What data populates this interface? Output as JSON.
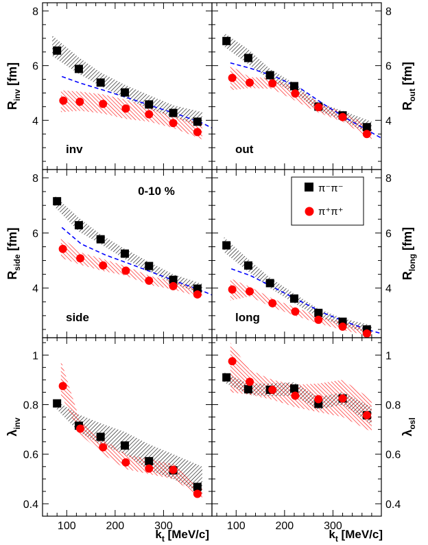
{
  "figure": {
    "x_axis_label": "k",
    "x_axis_sub": "t",
    "x_axis_unit": " [MeV/c]",
    "centrality": "0-10 %",
    "legend": [
      {
        "label": "π⁻π⁻",
        "marker": "square",
        "color": "#000000"
      },
      {
        "label": "π⁺π⁺",
        "marker": "circle",
        "color": "#ff0000"
      }
    ]
  },
  "colors": {
    "pim": "#000000",
    "pip": "#ff0000",
    "model": "#0000ff"
  },
  "chart_data": [
    {
      "type": "scatter",
      "panel": "inv",
      "label_main": "R",
      "label_sub": "inv",
      "label_unit": " [fm]",
      "panel_label": "inv",
      "ylim": [
        2.2,
        8.3
      ],
      "yticks": [
        4,
        6,
        8
      ],
      "xlim": [
        50,
        400
      ],
      "xticks": [
        100,
        200,
        300
      ],
      "series": [
        {
          "name": "π⁻π⁻",
          "x": [
            80,
            125,
            170,
            220,
            270,
            320,
            370
          ],
          "y": [
            6.55,
            5.88,
            5.38,
            5.02,
            4.58,
            4.27,
            3.95
          ],
          "band_x": [
            70,
            125,
            170,
            220,
            270,
            320,
            380
          ],
          "band_low": [
            6.35,
            5.7,
            5.25,
            4.82,
            4.42,
            4.12,
            3.75
          ],
          "band_high": [
            7.1,
            6.3,
            5.75,
            5.3,
            4.92,
            4.55,
            4.3
          ]
        },
        {
          "name": "π⁺π⁺",
          "x": [
            93,
            127,
            175,
            222,
            270,
            320,
            370
          ],
          "y": [
            4.72,
            4.68,
            4.6,
            4.43,
            4.22,
            3.9,
            3.57
          ],
          "band_x": [
            88,
            127,
            175,
            222,
            270,
            320,
            380
          ],
          "band_low": [
            4.3,
            4.35,
            4.25,
            4.05,
            3.95,
            3.72,
            3.3
          ],
          "band_high": [
            5.1,
            5.05,
            4.95,
            4.75,
            4.5,
            4.15,
            3.9
          ]
        },
        {
          "name": "",
          "line": true,
          "x": [
            90,
            130,
            180,
            230,
            280,
            330,
            380,
            400
          ],
          "y": [
            5.6,
            5.35,
            5.08,
            4.8,
            4.5,
            4.22,
            3.9,
            3.72
          ]
        }
      ]
    },
    {
      "type": "scatter",
      "panel": "out",
      "label_main": "R",
      "label_sub": "out",
      "label_unit": " [fm]",
      "panel_label": "out",
      "ylim": [
        2.2,
        8.3
      ],
      "yticks": [
        4,
        6,
        8
      ],
      "xlim": [
        50,
        400
      ],
      "xticks": [
        100,
        200,
        300
      ],
      "series": [
        {
          "name": "π⁻π⁻",
          "x": [
            80,
            125,
            170,
            220,
            270,
            320,
            370
          ],
          "y": [
            6.9,
            6.28,
            5.65,
            5.25,
            4.5,
            4.18,
            3.75
          ],
          "band_x": [
            75,
            125,
            170,
            220,
            270,
            320,
            380
          ],
          "band_low": [
            6.7,
            6.05,
            5.48,
            5.0,
            4.35,
            4.0,
            3.45
          ],
          "band_high": [
            7.2,
            6.6,
            5.88,
            5.35,
            4.65,
            4.35,
            3.95
          ]
        },
        {
          "name": "π⁺π⁺",
          "x": [
            92,
            128,
            175,
            222,
            270,
            320,
            370
          ],
          "y": [
            5.55,
            5.38,
            5.35,
            4.98,
            4.48,
            4.12,
            3.5
          ],
          "band_x": [
            88,
            128,
            175,
            222,
            270,
            320,
            380
          ],
          "band_low": [
            5.1,
            5.18,
            5.15,
            4.72,
            4.28,
            3.95,
            3.3
          ],
          "band_high": [
            6.0,
            5.58,
            5.55,
            5.18,
            4.65,
            4.3,
            3.75
          ]
        },
        {
          "name": "",
          "line": true,
          "x": [
            88,
            130,
            180,
            230,
            280,
            330,
            380,
            400
          ],
          "y": [
            6.1,
            5.9,
            5.6,
            5.2,
            4.6,
            4.05,
            3.55,
            3.35
          ]
        }
      ]
    },
    {
      "type": "scatter",
      "panel": "side",
      "label_main": "R",
      "label_sub": "side",
      "label_unit": " [fm]",
      "panel_label": "side",
      "ylim": [
        2.2,
        8.3
      ],
      "yticks": [
        4,
        6,
        8
      ],
      "xlim": [
        50,
        400
      ],
      "xticks": [
        100,
        200,
        300
      ],
      "series": [
        {
          "name": "π⁻π⁻",
          "x": [
            80,
            125,
            170,
            220,
            270,
            320,
            370
          ],
          "y": [
            7.15,
            6.28,
            5.77,
            5.25,
            4.8,
            4.3,
            3.98
          ],
          "band_x": [
            75,
            125,
            170,
            220,
            270,
            320,
            380
          ],
          "band_low": [
            6.95,
            6.05,
            5.6,
            5.05,
            4.62,
            4.15,
            3.8
          ],
          "band_high": [
            7.35,
            6.55,
            5.95,
            5.42,
            4.95,
            4.5,
            4.15
          ]
        },
        {
          "name": "π⁺π⁺",
          "x": [
            92,
            128,
            175,
            222,
            270,
            320,
            370
          ],
          "y": [
            5.42,
            5.08,
            4.82,
            4.63,
            4.27,
            4.07,
            3.77
          ],
          "band_x": [
            88,
            128,
            175,
            222,
            270,
            320,
            380
          ],
          "band_low": [
            5.1,
            4.85,
            4.62,
            4.45,
            4.12,
            3.95,
            3.65
          ],
          "band_high": [
            5.85,
            5.3,
            5.05,
            4.8,
            4.45,
            4.25,
            3.95
          ]
        },
        {
          "name": "",
          "line": true,
          "x": [
            90,
            130,
            180,
            230,
            280,
            330,
            380,
            400
          ],
          "y": [
            6.2,
            5.6,
            5.2,
            4.88,
            4.55,
            4.22,
            3.9,
            3.75
          ]
        }
      ]
    },
    {
      "type": "scatter",
      "panel": "long",
      "label_main": "R",
      "label_sub": "long",
      "label_unit": " [fm]",
      "panel_label": "long",
      "ylim": [
        2.2,
        8.3
      ],
      "yticks": [
        4,
        6,
        8
      ],
      "xlim": [
        50,
        400
      ],
      "xticks": [
        100,
        200,
        300
      ],
      "series": [
        {
          "name": "π⁻π⁻",
          "x": [
            80,
            125,
            170,
            220,
            270,
            320,
            370
          ],
          "y": [
            5.55,
            4.82,
            4.18,
            3.62,
            3.1,
            2.78,
            2.5
          ],
          "band_x": [
            75,
            125,
            170,
            220,
            270,
            320,
            380
          ],
          "band_low": [
            5.3,
            4.6,
            4.0,
            3.45,
            2.95,
            2.62,
            2.35
          ],
          "band_high": [
            5.85,
            5.05,
            4.38,
            3.8,
            3.25,
            2.9,
            2.65
          ]
        },
        {
          "name": "π⁺π⁺",
          "x": [
            92,
            128,
            175,
            222,
            270,
            320,
            370
          ],
          "y": [
            3.95,
            3.88,
            3.45,
            3.15,
            2.85,
            2.6,
            2.35
          ],
          "band_x": [
            88,
            128,
            175,
            222,
            270,
            320,
            380
          ],
          "band_low": [
            3.55,
            3.7,
            3.3,
            3.0,
            2.72,
            2.48,
            2.25
          ],
          "band_high": [
            4.35,
            4.05,
            3.62,
            3.3,
            3.0,
            2.75,
            2.5
          ]
        },
        {
          "name": "",
          "line": true,
          "x": [
            90,
            130,
            180,
            230,
            280,
            330,
            380,
            400
          ],
          "y": [
            4.7,
            4.45,
            4.0,
            3.55,
            3.1,
            2.75,
            2.45,
            2.35
          ]
        }
      ]
    },
    {
      "type": "scatter",
      "panel": "lambda_inv",
      "label_main": "λ",
      "label_sub": "inv",
      "label_unit": "",
      "panel_label": "",
      "ylim": [
        0.35,
        1.07
      ],
      "yticks": [
        0.4,
        0.6,
        0.8,
        1.0
      ],
      "xlim": [
        50,
        400
      ],
      "xticks": [
        100,
        200,
        300
      ],
      "series": [
        {
          "name": "π⁻π⁻",
          "x": [
            80,
            125,
            170,
            220,
            270,
            320,
            370
          ],
          "y": [
            0.805,
            0.715,
            0.67,
            0.635,
            0.572,
            0.535,
            0.468
          ],
          "band_x": [
            75,
            125,
            170,
            220,
            270,
            320,
            380
          ],
          "band_low": [
            0.79,
            0.69,
            0.64,
            0.6,
            0.535,
            0.5,
            0.44
          ],
          "band_high": [
            0.82,
            0.76,
            0.725,
            0.69,
            0.64,
            0.6,
            0.55
          ]
        },
        {
          "name": "π⁺π⁺",
          "x": [
            92,
            128,
            175,
            222,
            270,
            320,
            370
          ],
          "y": [
            0.875,
            0.703,
            0.628,
            0.567,
            0.542,
            0.537,
            0.44
          ],
          "band_x": [
            88,
            128,
            175,
            222,
            270,
            320,
            380
          ],
          "band_low": [
            0.84,
            0.68,
            0.6,
            0.54,
            0.52,
            0.5,
            0.42
          ],
          "band_high": [
            0.98,
            0.73,
            0.66,
            0.6,
            0.58,
            0.56,
            0.46
          ]
        }
      ]
    },
    {
      "type": "scatter",
      "panel": "lambda_osl",
      "label_main": "λ",
      "label_sub": "osl",
      "label_unit": "",
      "panel_label": "",
      "ylim": [
        0.35,
        1.07
      ],
      "yticks": [
        0.4,
        0.6,
        0.8,
        1.0
      ],
      "xlim": [
        50,
        400
      ],
      "xticks": [
        100,
        200,
        300
      ],
      "series": [
        {
          "name": "π⁻π⁻",
          "x": [
            80,
            125,
            170,
            220,
            270,
            320,
            370
          ],
          "y": [
            0.91,
            0.862,
            0.86,
            0.865,
            0.803,
            0.825,
            0.757
          ],
          "band_x": [
            75,
            125,
            170,
            220,
            270,
            320,
            380
          ],
          "band_low": [
            0.89,
            0.84,
            0.835,
            0.835,
            0.78,
            0.8,
            0.72
          ],
          "band_high": [
            0.93,
            0.885,
            0.885,
            0.89,
            0.83,
            0.85,
            0.79
          ]
        },
        {
          "name": "π⁺π⁺",
          "x": [
            92,
            128,
            175,
            222,
            270,
            320,
            370
          ],
          "y": [
            0.975,
            0.892,
            0.86,
            0.836,
            0.822,
            0.825,
            0.757
          ],
          "band_x": [
            88,
            128,
            175,
            222,
            270,
            320,
            380
          ],
          "band_low": [
            0.85,
            0.84,
            0.82,
            0.79,
            0.77,
            0.75,
            0.69
          ],
          "band_high": [
            1.05,
            0.94,
            0.9,
            0.88,
            0.885,
            0.9,
            0.82
          ]
        }
      ]
    }
  ]
}
